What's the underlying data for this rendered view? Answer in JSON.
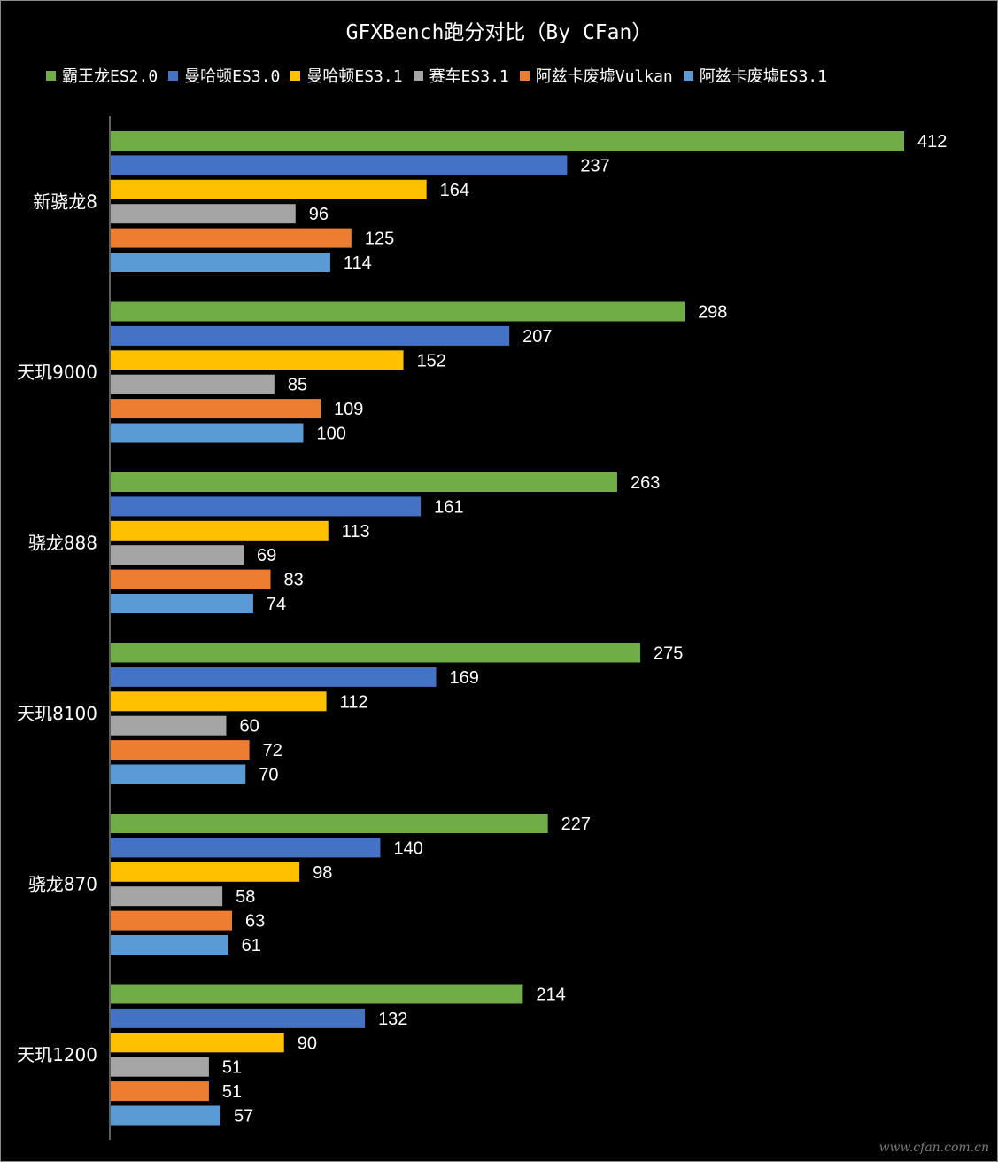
{
  "chart_data": {
    "type": "bar",
    "orientation": "horizontal",
    "title": "GFXBench跑分对比（By CFan）",
    "categories": [
      "新骁龙8",
      "天玑9000",
      "骁龙888",
      "天玑8100",
      "骁龙870",
      "天玑1200"
    ],
    "series": [
      {
        "name": "霸王龙ES2.0",
        "color": "#70ad47",
        "values": [
          412,
          298,
          263,
          275,
          227,
          214
        ]
      },
      {
        "name": "曼哈顿ES3.0",
        "color": "#4472c4",
        "values": [
          237,
          207,
          161,
          169,
          140,
          132
        ]
      },
      {
        "name": "曼哈顿ES3.1",
        "color": "#ffc000",
        "values": [
          164,
          152,
          113,
          112,
          98,
          90
        ]
      },
      {
        "name": "赛车ES3.1",
        "color": "#a5a5a5",
        "values": [
          96,
          85,
          69,
          60,
          58,
          51
        ]
      },
      {
        "name": "阿兹卡废墟Vulkan",
        "color": "#ed7d31",
        "values": [
          125,
          109,
          83,
          72,
          63,
          51
        ]
      },
      {
        "name": "阿兹卡废墟ES3.1",
        "color": "#5b9bd5",
        "values": [
          114,
          100,
          74,
          70,
          61,
          57
        ]
      }
    ],
    "legend_position": "top",
    "grid": false,
    "data_labels": true,
    "xlim": [
      0,
      412
    ]
  },
  "watermark": "www.cfan.com.cn"
}
